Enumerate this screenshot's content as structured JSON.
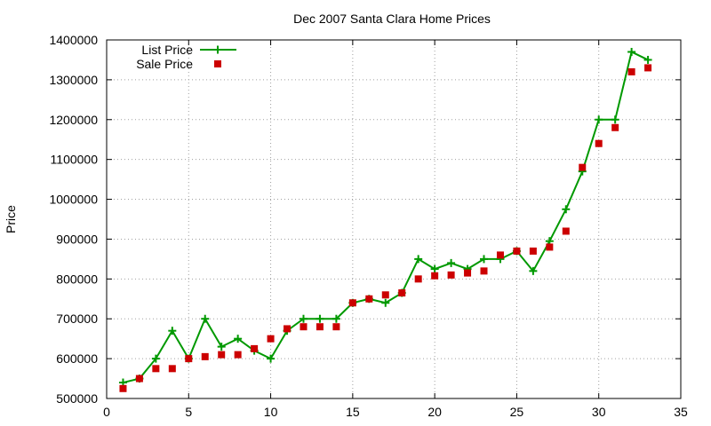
{
  "chart_data": {
    "type": "line",
    "title": "Dec 2007 Santa Clara Home Prices",
    "xlabel": "",
    "ylabel": "Price",
    "xlim": [
      0,
      35
    ],
    "ylim": [
      500000,
      1400000
    ],
    "x_ticks": [
      0,
      5,
      10,
      15,
      20,
      25,
      30,
      35
    ],
    "y_ticks": [
      500000,
      600000,
      700000,
      800000,
      900000,
      1000000,
      1100000,
      1200000,
      1300000,
      1400000
    ],
    "grid": true,
    "legend_position": "top-left",
    "series": [
      {
        "name": "List Price",
        "style": "line-with-plus-markers",
        "color": "#009900",
        "x": [
          1,
          2,
          3,
          4,
          5,
          6,
          7,
          8,
          9,
          10,
          11,
          12,
          13,
          14,
          15,
          16,
          17,
          18,
          19,
          20,
          21,
          22,
          23,
          24,
          25,
          26,
          27,
          28,
          29,
          30,
          31,
          32,
          33
        ],
        "values": [
          540000,
          550000,
          600000,
          670000,
          600000,
          700000,
          630000,
          650000,
          620000,
          600000,
          670000,
          700000,
          700000,
          700000,
          740000,
          750000,
          740000,
          765000,
          850000,
          825000,
          840000,
          825000,
          850000,
          850000,
          870000,
          820000,
          895000,
          975000,
          1070000,
          1200000,
          1200000,
          1370000,
          1350000
        ]
      },
      {
        "name": "Sale Price",
        "style": "square-markers",
        "color": "#cc0000",
        "x": [
          1,
          2,
          3,
          4,
          5,
          6,
          7,
          8,
          9,
          10,
          11,
          12,
          13,
          14,
          15,
          16,
          17,
          18,
          19,
          20,
          21,
          22,
          23,
          24,
          25,
          26,
          27,
          28,
          29,
          30,
          31,
          32,
          33
        ],
        "values": [
          525000,
          550000,
          575000,
          575000,
          600000,
          605000,
          610000,
          610000,
          625000,
          650000,
          675000,
          680000,
          680000,
          680000,
          740000,
          750000,
          760000,
          765000,
          800000,
          808000,
          810000,
          815000,
          820000,
          860000,
          870000,
          870000,
          880000,
          920000,
          1080000,
          1140000,
          1180000,
          1320000,
          1330000
        ]
      }
    ]
  }
}
